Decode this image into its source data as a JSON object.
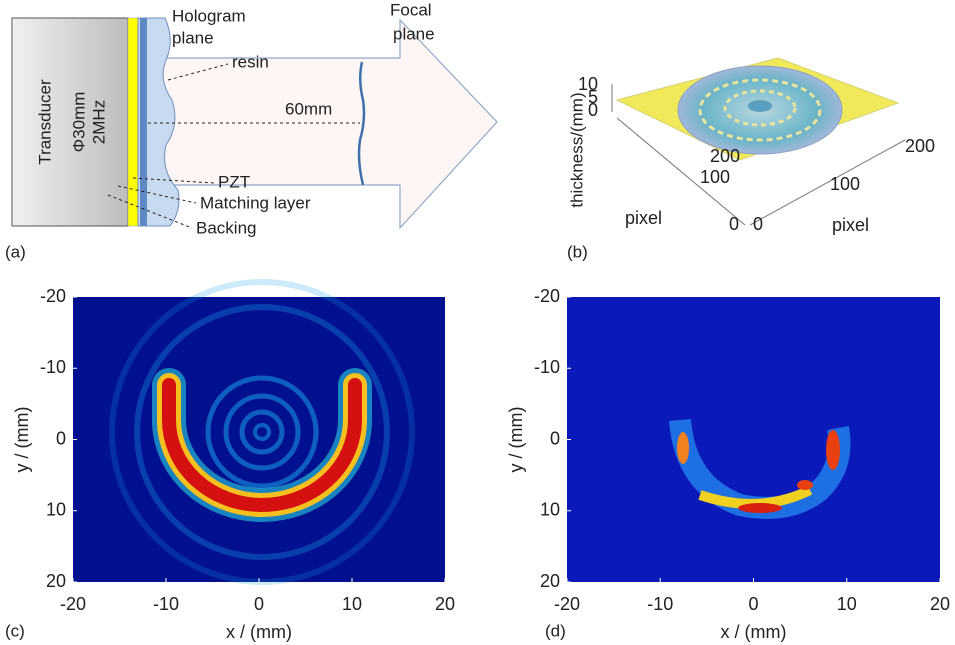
{
  "panel_a": {
    "label": "(a)",
    "transducer": "Transducer",
    "diameter": "Φ30mm",
    "frequency": "2MHz",
    "hologram_plane": [
      "Hologram",
      "plane"
    ],
    "focal_plane": [
      "Focal",
      "plane"
    ],
    "resin": "resin",
    "distance": "60mm",
    "pzt": "PZT",
    "matching_layer": "Matching layer",
    "backing": "Backing"
  },
  "panel_b": {
    "label": "(b)",
    "z_label": "thickness/(mm)",
    "z_ticks": [
      10,
      5,
      0
    ],
    "left_axis_label": "pixel",
    "left_ticks": [
      200,
      100,
      0
    ],
    "right_axis_label": "pixel",
    "right_ticks": [
      0,
      100,
      200
    ]
  },
  "panel_c": {
    "label": "(c)",
    "x_label": "x / (mm)",
    "y_label": "y / (mm)",
    "xlim": [
      -20,
      20
    ],
    "ylim": [
      -20,
      20
    ],
    "x_ticks": [
      -20,
      -10,
      0,
      10,
      20
    ],
    "y_ticks": [
      -20,
      -10,
      0,
      10,
      20
    ]
  },
  "panel_d": {
    "label": "(d)",
    "x_label": "x / (mm)",
    "y_label": "y / (mm)",
    "xlim": [
      -20,
      20
    ],
    "ylim": [
      -20,
      20
    ],
    "x_ticks": [
      -20,
      -10,
      0,
      10,
      20
    ],
    "y_ticks": [
      -20,
      -10,
      0,
      10,
      20
    ]
  }
}
